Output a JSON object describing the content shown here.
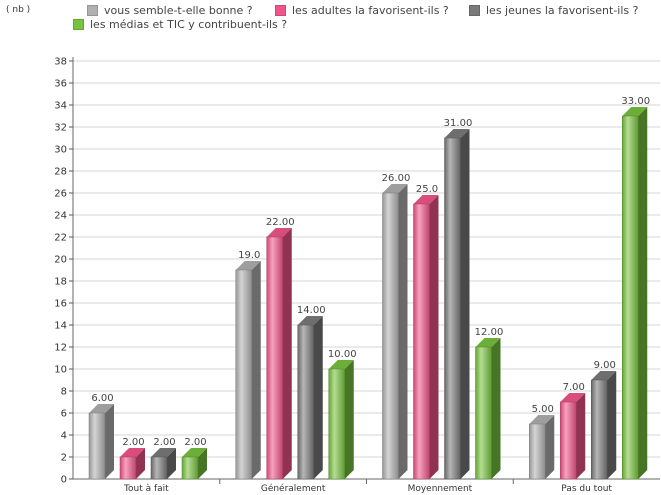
{
  "chart_data": {
    "type": "bar",
    "unit_label": "( nb )",
    "categories": [
      "Tout à fait",
      "Généralement",
      "Moyennement",
      "Pas du tout"
    ],
    "series": [
      {
        "name": "vous semble-t-elle bonne ?",
        "color": "#b0b0b0",
        "values": [
          6.0,
          19.0,
          26.0,
          5.0
        ],
        "value_labels": [
          "6.00",
          "19.0",
          "26.00",
          "5.00"
        ]
      },
      {
        "name": "les adultes la favorisent-ils ?",
        "color": "#f0558a",
        "values": [
          2.0,
          22.0,
          25.0,
          7.0
        ],
        "value_labels": [
          "2.00",
          "22.00",
          "25.0",
          "7.00"
        ]
      },
      {
        "name": "les jeunes la favorisent-ils ?",
        "color": "#7a7a7a",
        "values": [
          2.0,
          14.0,
          31.0,
          9.0
        ],
        "value_labels": [
          "2.00",
          "14.00",
          "31.00",
          "9.00"
        ]
      },
      {
        "name": "les médias et TIC y contribuent-ils ?",
        "color": "#78c23e",
        "values": [
          2.0,
          10.0,
          12.0,
          33.0
        ],
        "value_labels": [
          "2.00",
          "10.00",
          "12.00",
          "33.00"
        ]
      }
    ],
    "yticks": [
      0,
      2,
      4,
      6,
      8,
      10,
      12,
      14,
      16,
      18,
      20,
      22,
      24,
      26,
      28,
      30,
      32,
      34,
      36,
      38
    ],
    "ylim": [
      0,
      38
    ],
    "grid": true,
    "legend_position": "top"
  }
}
